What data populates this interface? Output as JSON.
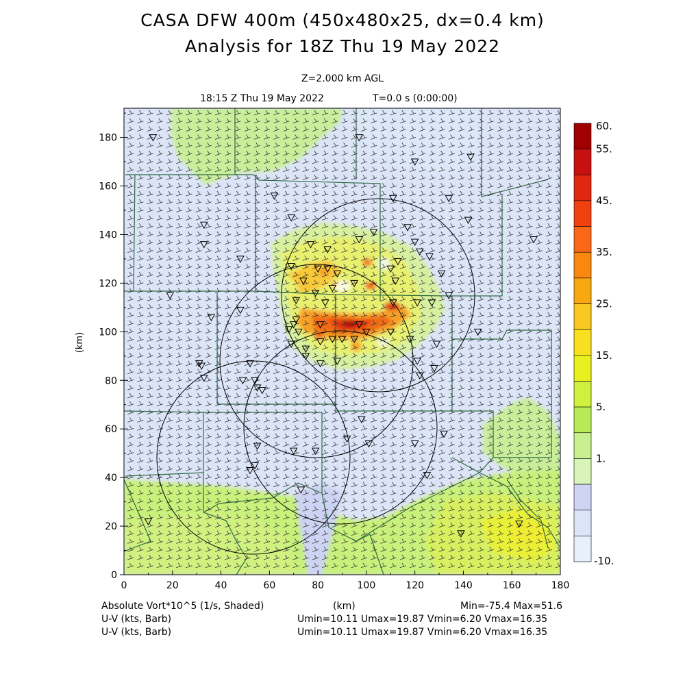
{
  "title_line1": "CASA DFW 400m (450x480x25, dx=0.4 km)",
  "title_line2": "Analysis for 18Z Thu 19 May 2022",
  "level_label": "Z=2.000 km AGL",
  "valid_time": "18:15 Z Thu 19 May 2022",
  "time_step": "T=0.0 s (0:00:00)",
  "footer": {
    "field1": "Absolute Vort*10^5 (1/s, Shaded)",
    "xunit": "(km)",
    "minmax": "Min=-75.4 Max=51.6",
    "field2": "U-V (kts, Barb)",
    "field3": "U-V (kts, Barb)",
    "uv_stats": "Umin=10.11 Umax=19.87 Vmin=6.20 Vmax=16.35"
  },
  "chart_data": {
    "type": "heatmap",
    "xlabel": "",
    "ylabel": "(km)",
    "xlim": [
      0,
      180
    ],
    "ylim": [
      0,
      192
    ],
    "xticks": [
      "0",
      "20",
      "40",
      "60",
      "80",
      "100",
      "120",
      "140",
      "160",
      "180"
    ],
    "yticks": [
      "0",
      "20",
      "40",
      "60",
      "80",
      "100",
      "120",
      "140",
      "160",
      "180"
    ],
    "colorbar": {
      "labels": [
        "60.",
        "55.",
        "45.",
        "35.",
        "25.",
        "15.",
        "5.",
        "1.",
        "-10."
      ],
      "colors": [
        "#a00000",
        "#c81010",
        "#e02810",
        "#f04010",
        "#f86818",
        "#f88810",
        "#f8a810",
        "#f8c820",
        "#f8e020",
        "#e8f020",
        "#d0f040",
        "#b8ea58",
        "#c8f090",
        "#d8f4b8",
        "#d0d4f4",
        "#dce4fa",
        "#e8f0fa"
      ]
    },
    "radar_rings": [
      {
        "center_x_km": 104,
        "center_y_km": 117,
        "radius_km": 40
      },
      {
        "center_x_km": 82,
        "center_y_km": 90,
        "radius_km": 40
      },
      {
        "center_x_km": 50,
        "center_y_km": 50,
        "radius_km": 40
      },
      {
        "center_x_km": 92,
        "center_y_km": 58,
        "radius_km": 40
      }
    ],
    "vorticity_cores": [
      {
        "x_km": 94,
        "y_km": 103,
        "value": 51.6
      },
      {
        "x_km": 110,
        "y_km": 111,
        "value": 45
      },
      {
        "x_km": 103,
        "y_km": 119,
        "value": 40
      },
      {
        "x_km": 99,
        "y_km": 129,
        "value": 38
      },
      {
        "x_km": 82,
        "y_km": 123,
        "value": 35
      },
      {
        "x_km": 87,
        "y_km": 104,
        "value": 42
      }
    ]
  }
}
